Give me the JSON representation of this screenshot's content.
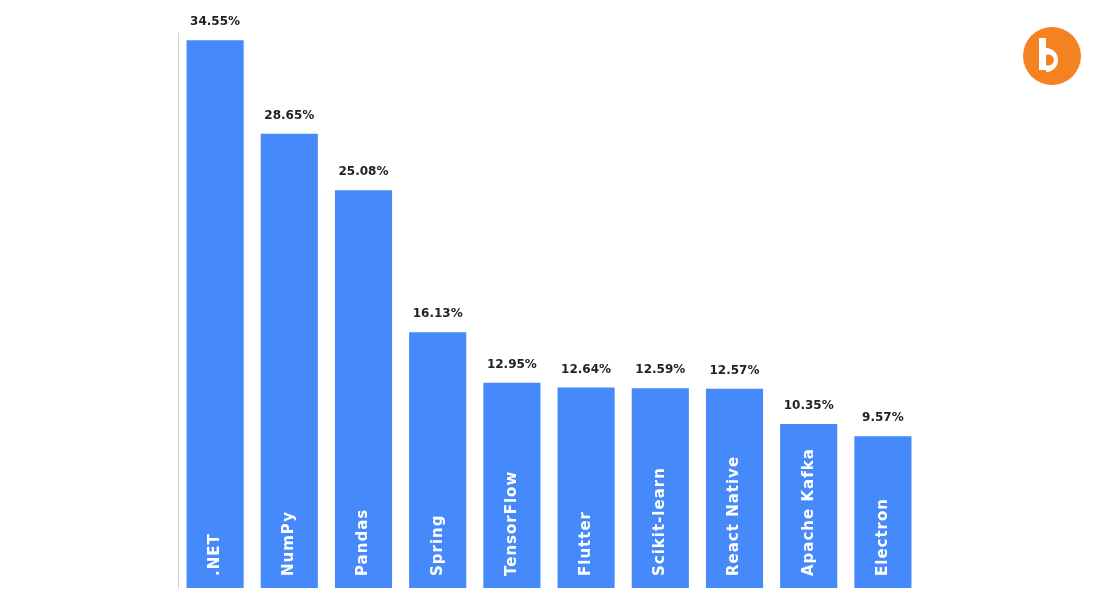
{
  "chart_data": {
    "type": "bar",
    "categories": [
      ".NET",
      "NumPy",
      "Pandas",
      "Spring",
      "TensorFlow",
      "Flutter",
      "Scikit-learn",
      "React Native",
      "Apache Kafka",
      "Electron"
    ],
    "values": [
      34.55,
      28.65,
      25.08,
      16.13,
      12.95,
      12.64,
      12.59,
      12.57,
      10.35,
      9.57
    ],
    "value_labels": [
      "34.55%",
      "28.65%",
      "25.08%",
      "16.13%",
      "12.95%",
      "12.64%",
      "12.59%",
      "12.57%",
      "10.35%",
      "9.57%"
    ],
    "color": "#4689fb",
    "ylim": [
      0,
      35
    ],
    "grid": false,
    "data_labels": true,
    "tick_labels": "x"
  }
}
